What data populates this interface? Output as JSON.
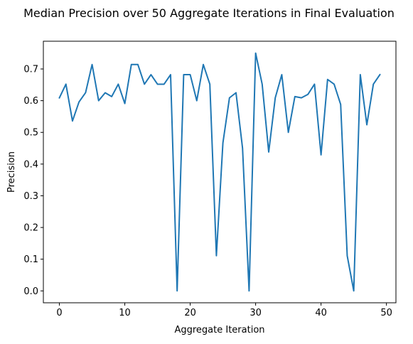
{
  "chart_data": {
    "type": "line",
    "title": "Median Precision over 50 Aggregate Iterations in Final Evaluation",
    "xlabel": "Aggregate Iteration",
    "ylabel": "Precision",
    "xlim": [
      -2.45,
      51.45
    ],
    "ylim": [
      -0.0375,
      0.7875
    ],
    "xticks": [
      0,
      10,
      20,
      30,
      40,
      50
    ],
    "yticks": [
      0.0,
      0.1,
      0.2,
      0.3,
      0.4,
      0.5,
      0.6,
      0.7
    ],
    "xtick_labels": [
      "0",
      "10",
      "20",
      "30",
      "40",
      "50"
    ],
    "ytick_labels": [
      "0.0",
      "0.1",
      "0.2",
      "0.3",
      "0.4",
      "0.5",
      "0.6",
      "0.7"
    ],
    "grid": false,
    "line_color": "#1f77b4",
    "series": [
      {
        "x": [
          0,
          1,
          2,
          3,
          4,
          5,
          6,
          7,
          8,
          9,
          10,
          11,
          12,
          13,
          14,
          15,
          16,
          17,
          18,
          19,
          20,
          21,
          22,
          23,
          24,
          25,
          26,
          27,
          28,
          29,
          30,
          31,
          32,
          33,
          34,
          35,
          36,
          37,
          38,
          39,
          40,
          41,
          42,
          43,
          44,
          45,
          46,
          47,
          48,
          49
        ],
        "values": [
          0.609,
          0.652,
          0.536,
          0.596,
          0.625,
          0.714,
          0.6,
          0.625,
          0.613,
          0.652,
          0.591,
          0.714,
          0.714,
          0.652,
          0.682,
          0.652,
          0.652,
          0.682,
          0.0,
          0.682,
          0.682,
          0.6,
          0.714,
          0.652,
          0.111,
          0.467,
          0.609,
          0.625,
          0.45,
          0.0,
          0.75,
          0.652,
          0.438,
          0.609,
          0.682,
          0.5,
          0.613,
          0.609,
          0.62,
          0.652,
          0.429,
          0.667,
          0.652,
          0.588,
          0.111,
          0.0,
          0.682,
          0.524,
          0.652,
          0.682
        ]
      }
    ]
  }
}
